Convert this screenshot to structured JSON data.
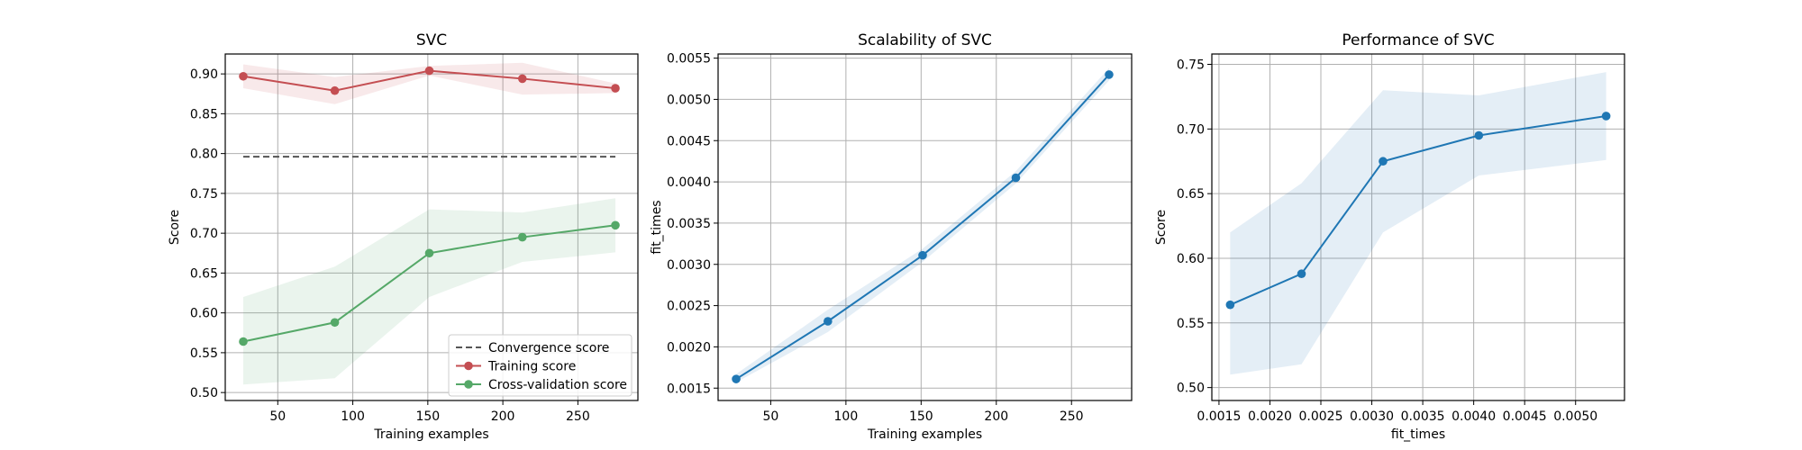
{
  "chart_data": [
    {
      "type": "line",
      "title": "SVC",
      "xlabel": "Training examples",
      "ylabel": "Score",
      "xlim": [
        15,
        290
      ],
      "ylim": [
        0.49,
        0.925
      ],
      "xticks": [
        50,
        100,
        150,
        200,
        250
      ],
      "xtick_labels": [
        "50",
        "100",
        "150",
        "200",
        "250"
      ],
      "yticks": [
        0.5,
        0.55,
        0.6,
        0.65,
        0.7,
        0.75,
        0.8,
        0.85,
        0.9
      ],
      "ytick_labels": [
        "0.50",
        "0.55",
        "0.60",
        "0.65",
        "0.70",
        "0.75",
        "0.80",
        "0.85",
        "0.90"
      ],
      "grid": true,
      "legend_position": "lower-right",
      "x": [
        27,
        88,
        151,
        213,
        275
      ],
      "series": [
        {
          "name": "Convergence score",
          "style": "dashed",
          "color": "#555555",
          "x": [
            27,
            275
          ],
          "values": [
            0.796,
            0.796
          ]
        },
        {
          "name": "Training score",
          "style": "line-marker",
          "color": "#c44e52",
          "values": [
            0.897,
            0.879,
            0.904,
            0.894,
            0.882
          ],
          "band_low": [
            0.882,
            0.862,
            0.898,
            0.874,
            0.876
          ],
          "band_high": [
            0.912,
            0.896,
            0.91,
            0.914,
            0.888
          ]
        },
        {
          "name": "Cross-validation score",
          "style": "line-marker",
          "color": "#55a868",
          "values": [
            0.564,
            0.588,
            0.675,
            0.695,
            0.71
          ],
          "band_low": [
            0.51,
            0.518,
            0.62,
            0.664,
            0.676
          ],
          "band_high": [
            0.62,
            0.658,
            0.73,
            0.726,
            0.744
          ]
        }
      ]
    },
    {
      "type": "line",
      "title": "Scalability of SVC",
      "xlabel": "Training examples",
      "ylabel": "fit_times",
      "xlim": [
        15,
        290
      ],
      "ylim": [
        0.00135,
        0.00555
      ],
      "xticks": [
        50,
        100,
        150,
        200,
        250
      ],
      "xtick_labels": [
        "50",
        "100",
        "150",
        "200",
        "250"
      ],
      "yticks": [
        0.0015,
        0.002,
        0.0025,
        0.003,
        0.0035,
        0.004,
        0.0045,
        0.005,
        0.0055
      ],
      "ytick_labels": [
        "0.0015",
        "0.0020",
        "0.0025",
        "0.0030",
        "0.0035",
        "0.0040",
        "0.0045",
        "0.0050",
        "0.0055"
      ],
      "grid": true,
      "x": [
        27,
        88,
        151,
        213,
        275
      ],
      "series": [
        {
          "style": "line-marker",
          "color": "#1f77b4",
          "values": [
            0.00161,
            0.00231,
            0.00311,
            0.00405,
            0.0053
          ],
          "band_low": [
            0.00157,
            0.00218,
            0.00303,
            0.00398,
            0.00523
          ],
          "band_high": [
            0.00167,
            0.00245,
            0.00319,
            0.00413,
            0.00538
          ]
        }
      ]
    },
    {
      "type": "line",
      "title": "Performance of SVC",
      "xlabel": "fit_times",
      "ylabel": "Score",
      "xlim": [
        0.00143,
        0.00548
      ],
      "ylim": [
        0.49,
        0.758
      ],
      "xticks": [
        0.0015,
        0.002,
        0.0025,
        0.003,
        0.0035,
        0.004,
        0.0045,
        0.005
      ],
      "xtick_labels": [
        "0.0015",
        "0.0020",
        "0.0025",
        "0.0030",
        "0.0035",
        "0.0040",
        "0.0045",
        "0.0050"
      ],
      "yticks": [
        0.5,
        0.55,
        0.6,
        0.65,
        0.7,
        0.75
      ],
      "ytick_labels": [
        "0.50",
        "0.55",
        "0.60",
        "0.65",
        "0.70",
        "0.75"
      ],
      "grid": true,
      "x": [
        0.00161,
        0.00231,
        0.00311,
        0.00405,
        0.0053
      ],
      "series": [
        {
          "style": "line-marker",
          "color": "#1f77b4",
          "values": [
            0.564,
            0.588,
            0.675,
            0.695,
            0.71
          ],
          "band_low": [
            0.51,
            0.518,
            0.62,
            0.664,
            0.676
          ],
          "band_high": [
            0.62,
            0.658,
            0.73,
            0.726,
            0.744
          ]
        }
      ]
    }
  ]
}
